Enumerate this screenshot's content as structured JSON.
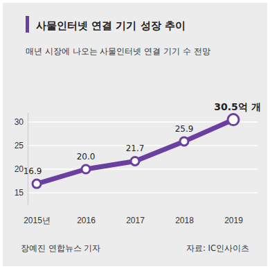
{
  "chart_data": {
    "type": "line",
    "title": "사물인터넷 연결 기기 성장 추이",
    "subtitle": "매년 시장에 나오는 사물인터넷 연결 기기 수 전망",
    "categories": [
      "2015년",
      "2016",
      "2017",
      "2018",
      "2019"
    ],
    "values": [
      16.9,
      20.0,
      21.7,
      25.9,
      30.5
    ],
    "value_labels": [
      "16.9",
      "20.0",
      "21.7",
      "25.9",
      "30.5억 개"
    ],
    "data_labels": true,
    "color": "#6b3fa0",
    "marker": "circle",
    "ylim": [
      12.5,
      32
    ],
    "yticks": [
      15,
      20,
      25,
      30
    ],
    "grid": true,
    "annotations": [
      "장예진 연합뉴스 기자",
      "자료: IC인사이츠"
    ]
  }
}
